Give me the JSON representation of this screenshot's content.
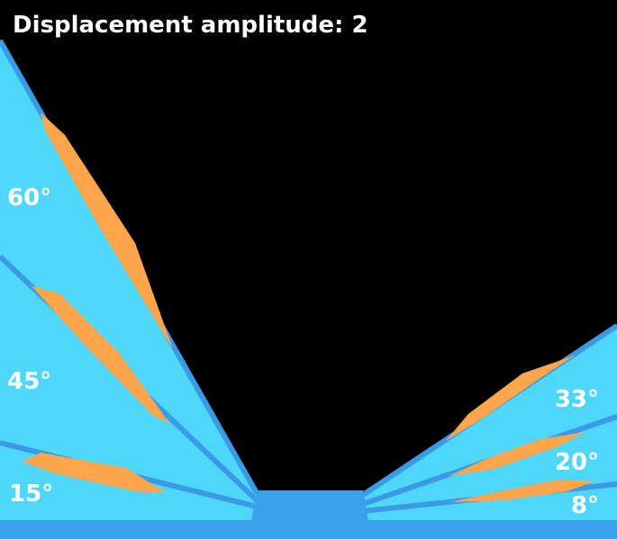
{
  "title": "Displacement amplitude: 2",
  "left_labels": [
    "60°",
    "45°",
    "15°"
  ],
  "right_labels": [
    "33°",
    "20°",
    "8°"
  ]
}
